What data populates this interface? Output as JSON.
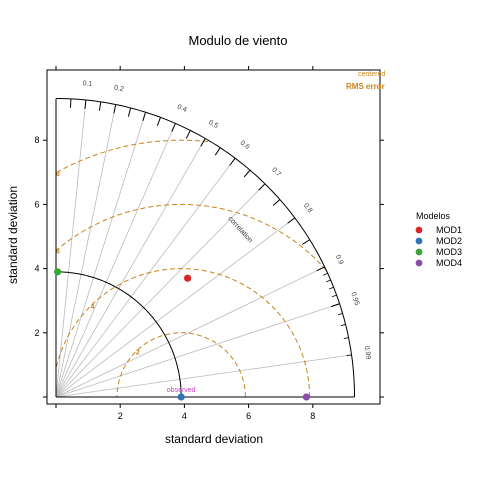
{
  "chart_data": {
    "type": "scatter",
    "subtype": "taylor-diagram",
    "title": "Modulo de viento",
    "xlabel": "standard deviation",
    "ylabel": "standard deviation",
    "xlim": [
      0,
      10
    ],
    "ylim": [
      0,
      10
    ],
    "x_ticks": [
      2,
      4,
      6,
      8
    ],
    "y_ticks": [
      2,
      4,
      6,
      8
    ],
    "x_tick_labels": [
      "2",
      "4",
      "6",
      "8"
    ],
    "y_tick_labels": [
      "2",
      "4",
      "6",
      "8"
    ],
    "reference": {
      "label": "observed",
      "sd": 3.9
    },
    "max_sd": 9.3,
    "correlation_label": "correlation",
    "correlation_ticks": [
      0.1,
      0.2,
      0.4,
      0.5,
      0.6,
      0.7,
      0.8,
      0.9,
      0.95,
      0.99
    ],
    "correlation_tick_labels": [
      "0.1",
      "0.2",
      "0.4",
      "0.5",
      "0.6",
      "0.7",
      "0.8",
      "0.9",
      "0.95",
      "0.99"
    ],
    "correlation_lines": [
      0.1,
      0.2,
      0.3,
      0.4,
      0.5,
      0.6,
      0.7,
      0.8,
      0.9,
      0.95,
      0.99
    ],
    "rms_contours": [
      2,
      4,
      6,
      8
    ],
    "rms_contour_labels": [
      "2",
      "4",
      "6",
      "8"
    ],
    "rms_legend": {
      "top": "centered",
      "bottom": "RMS error"
    },
    "legend_title": "Modelos",
    "legend_position": "right",
    "colors": {
      "rms": "#c8841a",
      "observed": "#cc44cc",
      "grid": "#bbbbbb",
      "axis": "#000000"
    },
    "series": [
      {
        "name": "MOD1",
        "color": "#d62728",
        "x": 4.1,
        "y": 3.7
      },
      {
        "name": "MOD2",
        "color": "#2f74b5",
        "x": 3.9,
        "y": 0.0
      },
      {
        "name": "MOD3",
        "color": "#3aa43a",
        "x": 0.05,
        "y": 3.9
      },
      {
        "name": "MOD4",
        "color": "#8a4cab",
        "x": 7.8,
        "y": 0.0
      }
    ]
  }
}
